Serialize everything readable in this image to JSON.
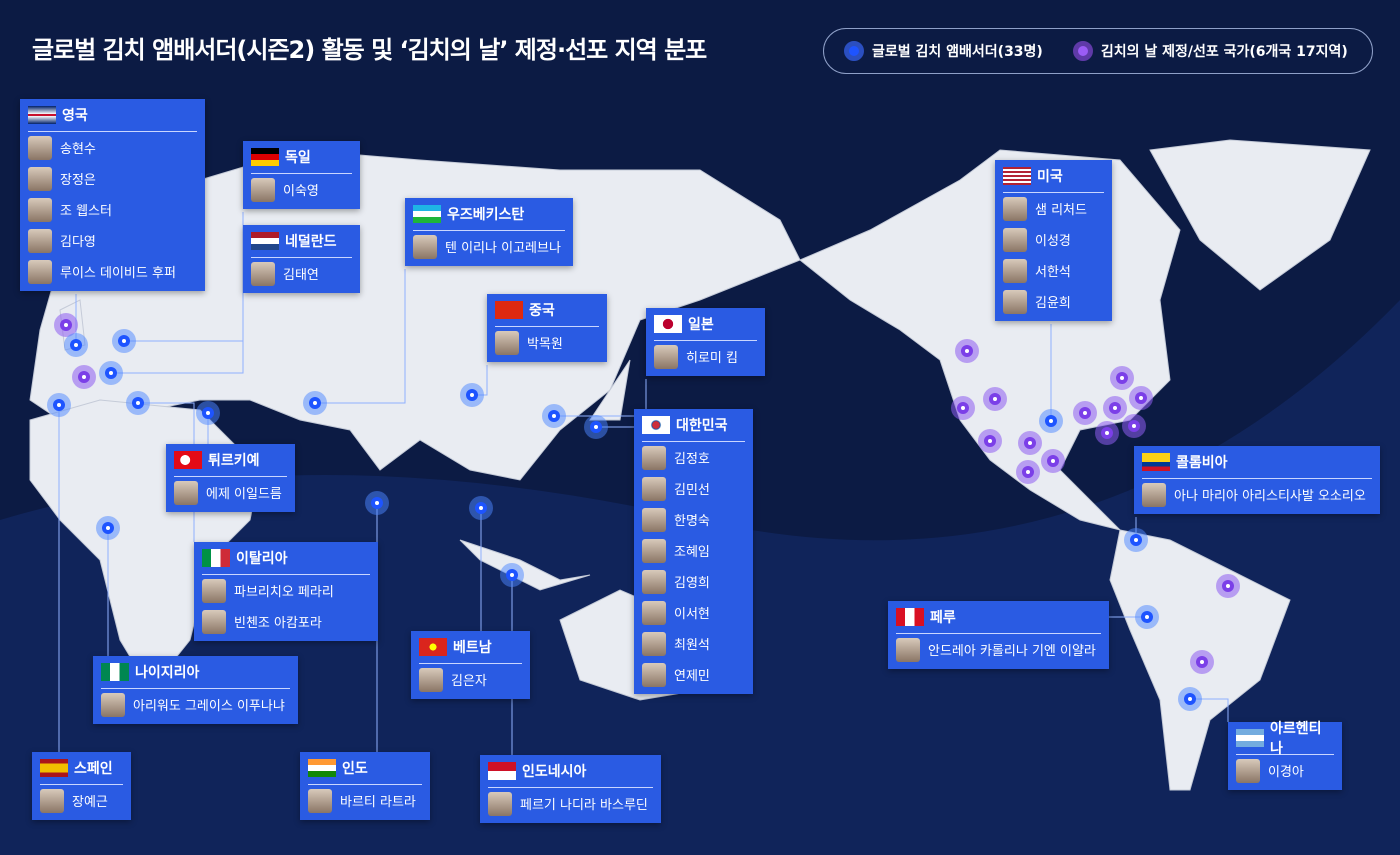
{
  "title": "글로벌 김치 앰배서더(시즌2) 활동 및 ‘김치의 날’ 제정·선포 지역 분포",
  "legend": [
    "글로벌 김치 앰배서더(33명)",
    "김치의 날 제정/선포 국가(6개국 17지역)"
  ],
  "countries": [
    {
      "name": "영국",
      "people": [
        "송현수",
        "장정은",
        "조 웹스터",
        "김다영",
        "루이스 데이비드 후퍼"
      ]
    },
    {
      "name": "독일",
      "people": [
        "이숙영"
      ]
    },
    {
      "name": "네덜란드",
      "people": [
        "김태연"
      ]
    },
    {
      "name": "우즈베키스탄",
      "people": [
        "텐 이리나 이고레브나"
      ]
    },
    {
      "name": "중국",
      "people": [
        "박목원"
      ]
    },
    {
      "name": "일본",
      "people": [
        "히로미 킴"
      ]
    },
    {
      "name": "대한민국",
      "people": [
        "김정호",
        "김민선",
        "한명숙",
        "조혜임",
        "김영희",
        "이서현",
        "최원석",
        "연제민"
      ]
    },
    {
      "name": "미국",
      "people": [
        "샘 리처드",
        "이성경",
        "서한석",
        "김윤희"
      ]
    },
    {
      "name": "콜롬비아",
      "people": [
        "아나 마리아 아리스티사발 오소리오"
      ]
    },
    {
      "name": "페루",
      "people": [
        "안드레아 카롤리나 기엔 이얄라"
      ]
    },
    {
      "name": "아르헨티나",
      "people": [
        "이경아"
      ]
    },
    {
      "name": "튀르키예",
      "people": [
        "에제 이일드름"
      ]
    },
    {
      "name": "이탈리아",
      "people": [
        "파브리치오 페라리",
        "빈첸조 아캄포라"
      ]
    },
    {
      "name": "나이지리아",
      "people": [
        "아리워도 그레이스 이푸나냐"
      ]
    },
    {
      "name": "베트남",
      "people": [
        "김은자"
      ]
    },
    {
      "name": "스페인",
      "people": [
        "장예근"
      ]
    },
    {
      "name": "인도",
      "people": [
        "바르티 라트라"
      ]
    },
    {
      "name": "인도네시아",
      "people": [
        "페르기 나디라 바스루딘"
      ]
    }
  ]
}
